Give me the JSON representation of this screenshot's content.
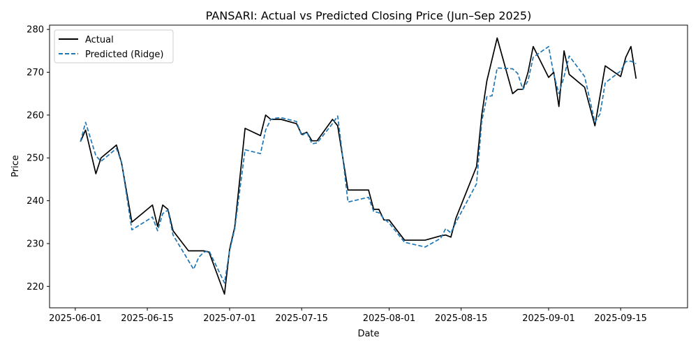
{
  "chart_data": {
    "type": "line",
    "title": "PANSARI: Actual vs Predicted Closing Price (Jun–Sep 2025)",
    "xlabel": "Date",
    "ylabel": "Price",
    "xlim": [
      "2025-05-27",
      "2025-09-28"
    ],
    "ylim": [
      215,
      281
    ],
    "x_ticks": [
      "2025-06-01",
      "2025-06-15",
      "2025-07-01",
      "2025-07-15",
      "2025-08-01",
      "2025-08-15",
      "2025-09-01",
      "2025-09-15"
    ],
    "y_ticks": [
      220,
      230,
      240,
      250,
      260,
      270,
      280
    ],
    "grid": false,
    "legend_position": "top-left",
    "series": [
      {
        "name": "Actual",
        "color": "#000000",
        "style": "solid",
        "points": [
          [
            "2025-06-02",
            253.8
          ],
          [
            "2025-06-03",
            256.5
          ],
          [
            "2025-06-05",
            246.3
          ],
          [
            "2025-06-06",
            250.0
          ],
          [
            "2025-06-09",
            253.0
          ],
          [
            "2025-06-10",
            248.8
          ],
          [
            "2025-06-12",
            235.0
          ],
          [
            "2025-06-16",
            239.0
          ],
          [
            "2025-06-17",
            234.0
          ],
          [
            "2025-06-18",
            239.0
          ],
          [
            "2025-06-19",
            238.0
          ],
          [
            "2025-06-20",
            233.0
          ],
          [
            "2025-06-23",
            228.3
          ],
          [
            "2025-06-24",
            228.3
          ],
          [
            "2025-06-25",
            228.3
          ],
          [
            "2025-06-26",
            228.3
          ],
          [
            "2025-06-27",
            228.0
          ],
          [
            "2025-06-30",
            218.2
          ],
          [
            "2025-07-01",
            228.7
          ],
          [
            "2025-07-02",
            233.9
          ],
          [
            "2025-07-04",
            256.9
          ],
          [
            "2025-07-07",
            255.2
          ],
          [
            "2025-07-08",
            260.0
          ],
          [
            "2025-07-09",
            259.0
          ],
          [
            "2025-07-10",
            259.0
          ],
          [
            "2025-07-11",
            259.0
          ],
          [
            "2025-07-14",
            258.0
          ],
          [
            "2025-07-15",
            255.5
          ],
          [
            "2025-07-16",
            256.0
          ],
          [
            "2025-07-17",
            254.0
          ],
          [
            "2025-07-18",
            254.0
          ],
          [
            "2025-07-21",
            259.0
          ],
          [
            "2025-07-22",
            257.5
          ],
          [
            "2025-07-23",
            250.0
          ],
          [
            "2025-07-24",
            242.5
          ],
          [
            "2025-07-28",
            242.5
          ],
          [
            "2025-07-29",
            238.0
          ],
          [
            "2025-07-30",
            238.0
          ],
          [
            "2025-07-31",
            235.5
          ],
          [
            "2025-08-01",
            235.5
          ],
          [
            "2025-08-04",
            230.8
          ],
          [
            "2025-08-08",
            230.8
          ],
          [
            "2025-08-11",
            231.8
          ],
          [
            "2025-08-12",
            232.0
          ],
          [
            "2025-08-13",
            231.5
          ],
          [
            "2025-08-14",
            236.0
          ],
          [
            "2025-08-18",
            248.0
          ],
          [
            "2025-08-19",
            260.0
          ],
          [
            "2025-08-20",
            268.0
          ],
          [
            "2025-08-22",
            278.0
          ],
          [
            "2025-08-25",
            265.0
          ],
          [
            "2025-08-26",
            266.0
          ],
          [
            "2025-08-27",
            266.0
          ],
          [
            "2025-08-28",
            270.0
          ],
          [
            "2025-08-29",
            276.0
          ],
          [
            "2025-09-01",
            268.8
          ],
          [
            "2025-09-02",
            270.0
          ],
          [
            "2025-09-03",
            262.0
          ],
          [
            "2025-09-04",
            275.0
          ],
          [
            "2025-09-05",
            269.5
          ],
          [
            "2025-09-08",
            266.5
          ],
          [
            "2025-09-10",
            257.5
          ],
          [
            "2025-09-12",
            271.5
          ],
          [
            "2025-09-15",
            269.0
          ],
          [
            "2025-09-16",
            273.5
          ],
          [
            "2025-09-17",
            276.0
          ],
          [
            "2025-09-18",
            268.5
          ]
        ]
      },
      {
        "name": "Predicted (Ridge)",
        "color": "#1f77b4",
        "style": "dashed",
        "points": [
          [
            "2025-06-02",
            253.8
          ],
          [
            "2025-06-03",
            258.3
          ],
          [
            "2025-06-05",
            250.5
          ],
          [
            "2025-06-06",
            249.2
          ],
          [
            "2025-06-09",
            252.2
          ],
          [
            "2025-06-10",
            249.0
          ],
          [
            "2025-06-12",
            233.2
          ],
          [
            "2025-06-16",
            236.2
          ],
          [
            "2025-06-17",
            233.0
          ],
          [
            "2025-06-18",
            237.0
          ],
          [
            "2025-06-19",
            237.8
          ],
          [
            "2025-06-20",
            232.0
          ],
          [
            "2025-06-23",
            226.0
          ],
          [
            "2025-06-24",
            224.0
          ],
          [
            "2025-06-25",
            226.8
          ],
          [
            "2025-06-26",
            228.0
          ],
          [
            "2025-06-27",
            228.3
          ],
          [
            "2025-06-30",
            220.8
          ],
          [
            "2025-07-01",
            228.3
          ],
          [
            "2025-07-02",
            233.5
          ],
          [
            "2025-07-04",
            251.9
          ],
          [
            "2025-07-07",
            251.0
          ],
          [
            "2025-07-08",
            256.5
          ],
          [
            "2025-07-09",
            259.0
          ],
          [
            "2025-07-10",
            259.3
          ],
          [
            "2025-07-11",
            259.4
          ],
          [
            "2025-07-14",
            258.5
          ],
          [
            "2025-07-15",
            255.2
          ],
          [
            "2025-07-16",
            256.0
          ],
          [
            "2025-07-17",
            253.3
          ],
          [
            "2025-07-18",
            253.5
          ],
          [
            "2025-07-21",
            258.0
          ],
          [
            "2025-07-22",
            259.8
          ],
          [
            "2025-07-23",
            250.0
          ],
          [
            "2025-07-24",
            239.7
          ],
          [
            "2025-07-28",
            240.8
          ],
          [
            "2025-07-29",
            237.5
          ],
          [
            "2025-07-30",
            237.2
          ],
          [
            "2025-07-31",
            235.8
          ],
          [
            "2025-08-01",
            234.8
          ],
          [
            "2025-08-04",
            230.3
          ],
          [
            "2025-08-08",
            229.2
          ],
          [
            "2025-08-11",
            231.2
          ],
          [
            "2025-08-12",
            233.5
          ],
          [
            "2025-08-13",
            232.5
          ],
          [
            "2025-08-14",
            235.0
          ],
          [
            "2025-08-18",
            244.0
          ],
          [
            "2025-08-19",
            258.5
          ],
          [
            "2025-08-20",
            264.3
          ],
          [
            "2025-08-21",
            264.5
          ],
          [
            "2025-08-22",
            271.0
          ],
          [
            "2025-08-25",
            270.8
          ],
          [
            "2025-08-26",
            269.7
          ],
          [
            "2025-08-27",
            266.0
          ],
          [
            "2025-08-28",
            268.0
          ],
          [
            "2025-08-29",
            273.5
          ],
          [
            "2025-09-01",
            276.0
          ],
          [
            "2025-09-02",
            269.5
          ],
          [
            "2025-09-03",
            265.0
          ],
          [
            "2025-09-04",
            269.0
          ],
          [
            "2025-09-05",
            273.8
          ],
          [
            "2025-09-08",
            269.0
          ],
          [
            "2025-09-10",
            258.3
          ],
          [
            "2025-09-11",
            260.3
          ],
          [
            "2025-09-12",
            267.5
          ],
          [
            "2025-09-15",
            270.3
          ],
          [
            "2025-09-16",
            272.5
          ],
          [
            "2025-09-17",
            272.6
          ],
          [
            "2025-09-18",
            272.0
          ]
        ]
      }
    ]
  }
}
